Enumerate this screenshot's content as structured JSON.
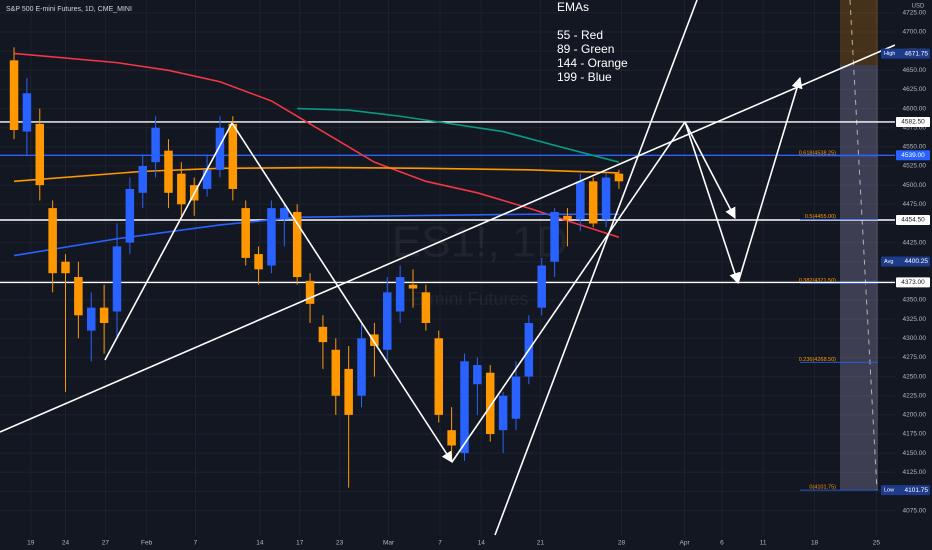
{
  "chart_data": {
    "type": "candlestick",
    "title": "S&P 500 E-mini Futures, 1D, CME_MINI",
    "watermark": "ES1!, 1D",
    "watermark_sub": "E-mini Futures",
    "currency": "USD",
    "legend_title": "EMAs",
    "up_color": "#2962ff",
    "down_color": "#ff9800",
    "grid": true,
    "open": [
      4663,
      4570,
      4580,
      4470,
      4400,
      4380,
      4310,
      4340,
      4335,
      4425,
      4490,
      4530,
      4545,
      4515,
      4500,
      4495,
      4520,
      4580,
      4470,
      4410,
      4395,
      4455,
      4465,
      4375,
      4315,
      4285,
      4260,
      4225,
      4305,
      4285,
      4335,
      4370,
      4360,
      4300,
      4180,
      4150,
      4240,
      4255,
      4180,
      4195,
      4250,
      4340,
      4400,
      4460,
      4455,
      4505,
      4455,
      4515
    ],
    "high": [
      4680,
      4640,
      4600,
      4480,
      4410,
      4400,
      4360,
      4370,
      4450,
      4510,
      4540,
      4590,
      4560,
      4530,
      4510,
      4540,
      4590,
      4590,
      4480,
      4420,
      4480,
      4475,
      4475,
      4385,
      4330,
      4300,
      4290,
      4320,
      4320,
      4380,
      4395,
      4390,
      4370,
      4310,
      4210,
      4280,
      4275,
      4265,
      4230,
      4270,
      4330,
      4405,
      4470,
      4470,
      4515,
      4510,
      4515,
      4520
    ],
    "low": [
      4560,
      4540,
      4480,
      4360,
      4230,
      4300,
      4270,
      4280,
      4300,
      4410,
      4470,
      4510,
      4470,
      4460,
      4460,
      4485,
      4510,
      4480,
      4395,
      4370,
      4385,
      4420,
      4370,
      4320,
      4260,
      4200,
      4105,
      4210,
      4250,
      4270,
      4320,
      4340,
      4310,
      4190,
      4140,
      4140,
      4200,
      4165,
      4150,
      4180,
      4240,
      4330,
      4380,
      4420,
      4440,
      4445,
      4445,
      4495
    ],
    "close": [
      4572,
      4620,
      4500,
      4385,
      4385,
      4330,
      4340,
      4320,
      4420,
      4495,
      4525,
      4575,
      4490,
      4475,
      4480,
      4520,
      4575,
      4495,
      4405,
      4390,
      4470,
      4470,
      4380,
      4345,
      4295,
      4225,
      4200,
      4300,
      4290,
      4360,
      4380,
      4365,
      4320,
      4200,
      4160,
      4270,
      4265,
      4175,
      4225,
      4250,
      4320,
      4395,
      4465,
      4455,
      4505,
      4450,
      4510,
      4505
    ],
    "xlim": [
      -1.09,
      68.45
    ],
    "xticks": [
      {
        "value": 1.3,
        "label": "19"
      },
      {
        "value": 4.0,
        "label": "24"
      },
      {
        "value": 7.1,
        "label": "27"
      },
      {
        "value": 10.3,
        "label": "Feb"
      },
      {
        "value": 14.1,
        "label": "7"
      },
      {
        "value": 19.1,
        "label": "14"
      },
      {
        "value": 22.2,
        "label": "17"
      },
      {
        "value": 25.3,
        "label": "23"
      },
      {
        "value": 29.1,
        "label": "Mar"
      },
      {
        "value": 33.1,
        "label": "7"
      },
      {
        "value": 36.3,
        "label": "14"
      },
      {
        "value": 40.9,
        "label": "21"
      },
      {
        "value": 47.2,
        "label": "28"
      },
      {
        "value": 52.1,
        "label": "Apr"
      },
      {
        "value": 55.0,
        "label": "6"
      },
      {
        "value": 58.2,
        "label": "11"
      },
      {
        "value": 62.2,
        "label": "18"
      },
      {
        "value": 67.0,
        "label": "25"
      }
    ],
    "ylim": [
      4041.8,
      4741.8
    ],
    "yticks": [
      {
        "value": 4075,
        "label": "4075.00"
      },
      {
        "value": 4100,
        "label": "4100.00"
      },
      {
        "value": 4125,
        "label": "4125.00"
      },
      {
        "value": 4150,
        "label": "4150.00"
      },
      {
        "value": 4175,
        "label": "4175.00"
      },
      {
        "value": 4200,
        "label": "4200.00"
      },
      {
        "value": 4225,
        "label": "4225.00"
      },
      {
        "value": 4250,
        "label": "4250.00"
      },
      {
        "value": 4275,
        "label": "4275.00"
      },
      {
        "value": 4300,
        "label": "4300.00"
      },
      {
        "value": 4325,
        "label": "4325.00"
      },
      {
        "value": 4350,
        "label": "4350.00"
      },
      {
        "value": 4375,
        "label": "4375.00"
      },
      {
        "value": 4400,
        "label": "4400.00"
      },
      {
        "value": 4425,
        "label": "4425.00"
      },
      {
        "value": 4450,
        "label": "4450.00"
      },
      {
        "value": 4475,
        "label": "4475.00"
      },
      {
        "value": 4500,
        "label": "4500.00"
      },
      {
        "value": 4525,
        "label": "4525.00"
      },
      {
        "value": 4550,
        "label": "4550.00"
      },
      {
        "value": 4575,
        "label": "4575.00"
      },
      {
        "value": 4600,
        "label": "4600.00"
      },
      {
        "value": 4625,
        "label": "4625.00"
      },
      {
        "value": 4650,
        "label": "4650.00"
      },
      {
        "value": 4675,
        "label": "4675.00"
      },
      {
        "value": 4700,
        "label": "4700.00"
      },
      {
        "value": 4725,
        "label": "4725.00"
      }
    ],
    "series": [
      {
        "name": "55 - Red",
        "color": "#f23645",
        "x": [
          0,
          8,
          12,
          16,
          20,
          24,
          28,
          32,
          36,
          40,
          44,
          47
        ],
        "values": [
          4672,
          4660,
          4650,
          4635,
          4610,
          4570,
          4530,
          4505,
          4490,
          4470,
          4448,
          4432
        ]
      },
      {
        "name": "89 - Green",
        "color": "#089981",
        "x": [
          22,
          26,
          30,
          34,
          38,
          42,
          47
        ],
        "values": [
          4600,
          4598,
          4590,
          4580,
          4570,
          4552,
          4530
        ]
      },
      {
        "name": "144 - Orange",
        "color": "#ff9800",
        "x": [
          0,
          10,
          16,
          24,
          32,
          40,
          47
        ],
        "values": [
          4505,
          4518,
          4522,
          4523,
          4522,
          4520,
          4516
        ]
      },
      {
        "name": "199  - Blue",
        "color": "#2962ff",
        "x": [
          0,
          8,
          16,
          22,
          30,
          40,
          47
        ],
        "values": [
          4408,
          4430,
          4448,
          4458,
          4460,
          4462,
          4462
        ]
      }
    ],
    "levels": [
      {
        "value": 4582.5,
        "label": "4582.50",
        "color": "#ffffff"
      },
      {
        "value": 4539,
        "label": "4539.00",
        "color": "#2962ff"
      },
      {
        "value": 4454.5,
        "label": "4454.50",
        "color": "#ffffff"
      },
      {
        "value": 4373,
        "label": "4373.00",
        "color": "#ffffff"
      }
    ],
    "markers": [
      {
        "name": "High",
        "value": 4671.75,
        "label": "4671.75"
      },
      {
        "name": "Avg",
        "value": 4400.25,
        "label": "4400.25"
      },
      {
        "name": "Low",
        "value": 4101.75,
        "label": "4101.75"
      }
    ],
    "fib": [
      {
        "label": "0.618(4538.25)",
        "value": 4538.25
      },
      {
        "label": "0.5(4455.00)",
        "value": 4455
      },
      {
        "label": "0.382(4371.50)",
        "value": 4371.5
      },
      {
        "label": "0.236(4268.50)",
        "value": 4268.5
      },
      {
        "label": "0(4101.75)",
        "value": 4101.75
      }
    ]
  }
}
